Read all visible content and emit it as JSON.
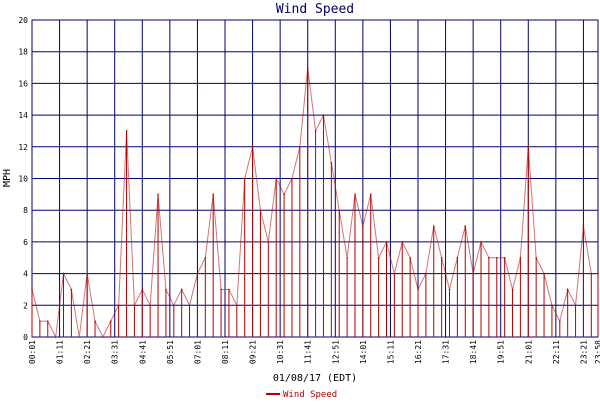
{
  "colors": {
    "background": "#ffffff",
    "grid": "#00006e",
    "series": "#b40000",
    "title": "#00006e",
    "text": "#000000"
  },
  "chart_data": {
    "type": "line",
    "title": "Wind Speed",
    "xlabel": "01/08/17 (EDT)",
    "ylabel": "MPH",
    "ylim": [
      0,
      20
    ],
    "y_ticks": [
      "0",
      "2",
      "4",
      "6",
      "8",
      "10",
      "12",
      "14",
      "16",
      "18",
      "20"
    ],
    "x_ticks": [
      "00:01",
      "01:11",
      "02:21",
      "03:31",
      "04:41",
      "05:51",
      "07:01",
      "08:11",
      "09:21",
      "10:31",
      "11:41",
      "12:51",
      "14:01",
      "15:11",
      "16:21",
      "17:31",
      "18:41",
      "19:51",
      "21:01",
      "22:11",
      "23:21",
      "23:58"
    ],
    "grid": true,
    "legend_position": "bottom-center",
    "series": [
      {
        "name": "Wind Speed",
        "x": [
          "00:01",
          "00:21",
          "00:41",
          "01:01",
          "01:21",
          "01:41",
          "02:01",
          "02:21",
          "02:41",
          "03:01",
          "03:21",
          "03:41",
          "04:01",
          "04:21",
          "04:41",
          "05:01",
          "05:21",
          "05:41",
          "06:01",
          "06:21",
          "06:41",
          "07:01",
          "07:21",
          "07:41",
          "08:01",
          "08:21",
          "08:41",
          "09:01",
          "09:21",
          "09:41",
          "10:01",
          "10:21",
          "10:41",
          "11:01",
          "11:21",
          "11:41",
          "12:01",
          "12:21",
          "12:41",
          "13:01",
          "13:21",
          "13:41",
          "14:01",
          "14:21",
          "14:41",
          "15:01",
          "15:21",
          "15:41",
          "16:01",
          "16:21",
          "16:41",
          "17:01",
          "17:21",
          "17:41",
          "18:01",
          "18:21",
          "18:41",
          "19:01",
          "19:21",
          "19:41",
          "20:01",
          "20:21",
          "20:41",
          "21:01",
          "21:21",
          "21:41",
          "22:01",
          "22:21",
          "22:41",
          "23:01",
          "23:21",
          "23:41",
          "23:58"
        ],
        "values": [
          3,
          1,
          1,
          0,
          4,
          3,
          0,
          4,
          1,
          0,
          1,
          2,
          13,
          2,
          3,
          2,
          9,
          3,
          2,
          3,
          2,
          4,
          5,
          9,
          3,
          3,
          2,
          10,
          12,
          8,
          6,
          10,
          9,
          10,
          12,
          17,
          13,
          14,
          11,
          8,
          5,
          9,
          7,
          9,
          5,
          6,
          4,
          6,
          5,
          3,
          4,
          7,
          5,
          3,
          5,
          7,
          4,
          6,
          5,
          5,
          5,
          3,
          5,
          12,
          5,
          4,
          2,
          1,
          3,
          2,
          7,
          4,
          4
        ]
      }
    ]
  }
}
